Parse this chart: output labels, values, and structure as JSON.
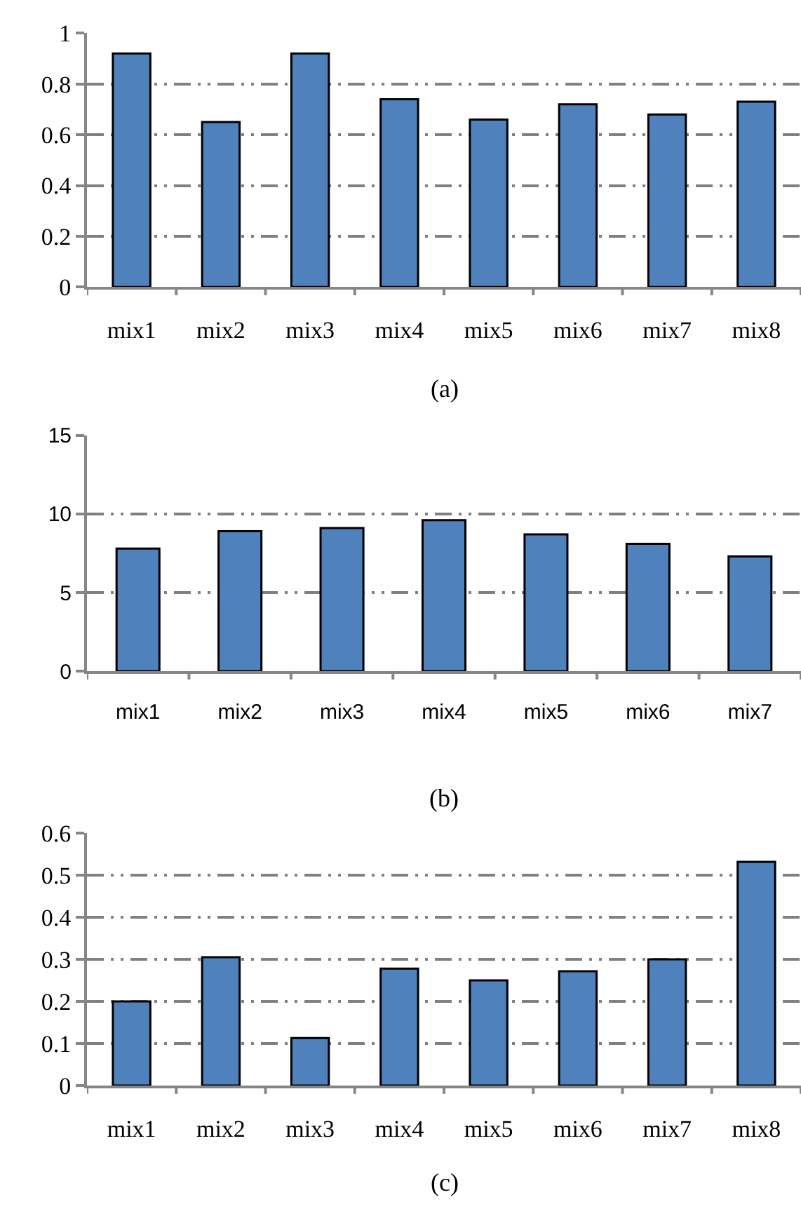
{
  "chart_data": [
    {
      "type": "bar",
      "categories": [
        "mix1",
        "mix2",
        "mix3",
        "mix4",
        "mix5",
        "mix6",
        "mix7",
        "mix8"
      ],
      "values": [
        0.92,
        0.65,
        0.92,
        0.74,
        0.66,
        0.72,
        0.68,
        0.73
      ],
      "color": "#4f81bd",
      "ylim": [
        0,
        1
      ],
      "yticks": [
        0,
        0.2,
        0.4,
        0.6,
        0.8,
        1
      ],
      "grid": "y",
      "annotations": [
        "(a)"
      ]
    },
    {
      "type": "bar",
      "categories": [
        "mix1",
        "mix2",
        "mix3",
        "mix4",
        "mix5",
        "mix6",
        "mix7"
      ],
      "values": [
        7.8,
        8.9,
        9.1,
        9.6,
        8.7,
        8.1,
        7.3
      ],
      "color": "#4f81bd",
      "ylim": [
        0,
        15
      ],
      "yticks": [
        0,
        5,
        10,
        15
      ],
      "grid": "y",
      "annotations": [
        "(b)"
      ]
    },
    {
      "type": "bar",
      "categories": [
        "mix1",
        "mix2",
        "mix3",
        "mix4",
        "mix5",
        "mix6",
        "mix7",
        "mix8"
      ],
      "values": [
        0.2,
        0.305,
        0.113,
        0.278,
        0.25,
        0.272,
        0.3,
        0.532
      ],
      "color": "#4f81bd",
      "ylim": [
        0,
        0.6
      ],
      "yticks": [
        0,
        0.1,
        0.2,
        0.3,
        0.4,
        0.5,
        0.6
      ],
      "grid": "y",
      "annotations": [
        "(c)"
      ]
    }
  ]
}
